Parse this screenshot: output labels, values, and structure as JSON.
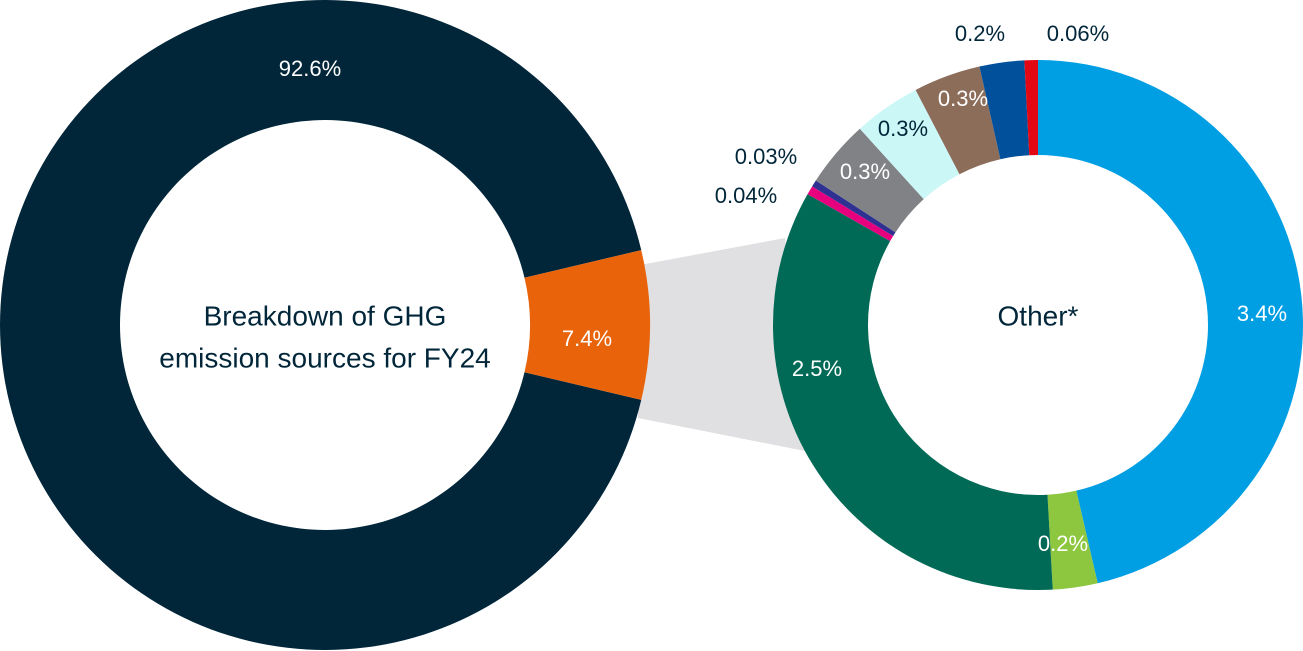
{
  "chart_data": [
    {
      "type": "donut",
      "center_label": [
        "Breakdown of GHG",
        "emission sources for FY24"
      ],
      "values": [
        92.6,
        7.4
      ],
      "value_labels": [
        "92.6%",
        "7.4%"
      ],
      "colors": [
        "#012639",
        "#e8630a"
      ]
    },
    {
      "type": "donut",
      "center_label": [
        "Other*"
      ],
      "values": [
        3.4,
        0.2,
        2.5,
        0.04,
        0.03,
        0.3,
        0.3,
        0.3,
        0.2,
        0.06
      ],
      "value_labels": [
        "3.4%",
        "0.2%",
        "2.5%",
        "0.04%",
        "0.03%",
        "0.3%",
        "0.3%",
        "0.3%",
        "0.2%",
        "0.06%"
      ],
      "colors": [
        "#009fe3",
        "#8dc63f",
        "#006a56",
        "#e6007e",
        "#2e3192",
        "#808285",
        "#ccf7f7",
        "#8c6d5a",
        "#00509b",
        "#e30613"
      ]
    }
  ]
}
